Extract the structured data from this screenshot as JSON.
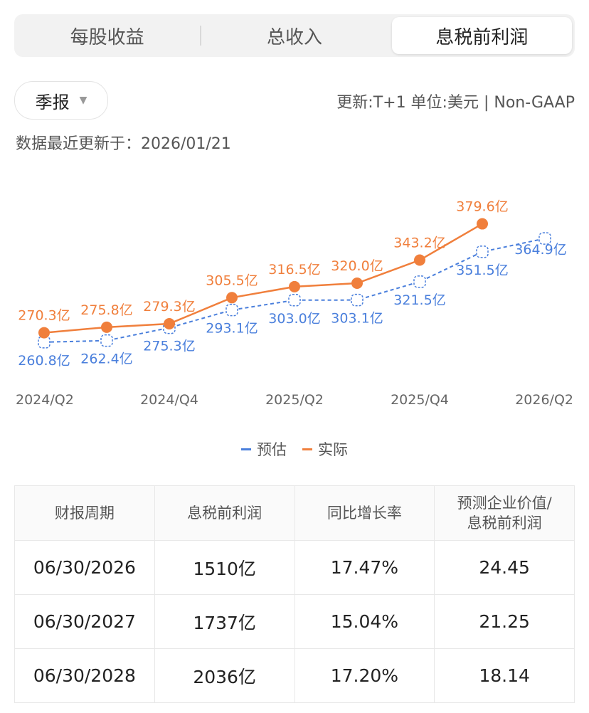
{
  "tabs": [
    "每股收益",
    "总收入",
    "息税前利润"
  ],
  "active_tab": 2,
  "period_selector": {
    "label": "季报"
  },
  "meta_line": "更新:T+1 单位:美元 | Non-GAAP",
  "updated_text": "数据最近更新于：2026/01/21",
  "colors": {
    "actual": "#f07f3c",
    "estimate": "#4a7fdc"
  },
  "chart_data": {
    "type": "line",
    "x": [
      "2024/Q2",
      "2024/Q3",
      "2024/Q4",
      "2025/Q1",
      "2025/Q2",
      "2025/Q3",
      "2025/Q4",
      "2026/Q1",
      "2026/Q2"
    ],
    "x_tick_labels": [
      "2024/Q2",
      "2024/Q4",
      "2025/Q2",
      "2025/Q4",
      "2026/Q2"
    ],
    "ylim": [
      240,
      390
    ],
    "series": [
      {
        "name": "预估",
        "style": "dashed",
        "values": [
          260.8,
          262.4,
          275.3,
          293.1,
          303.0,
          303.1,
          321.5,
          351.5,
          364.9
        ],
        "labels": [
          "260.8亿",
          "262.4亿",
          "275.3亿",
          "293.1亿",
          "303.0亿",
          "303.1亿",
          "321.5亿",
          "351.5亿",
          "364.9亿"
        ]
      },
      {
        "name": "实际",
        "style": "solid",
        "values": [
          270.3,
          275.8,
          279.3,
          305.5,
          316.5,
          320.0,
          343.2,
          379.6,
          null
        ],
        "labels": [
          "270.3亿",
          "275.8亿",
          "279.3亿",
          "305.5亿",
          "316.5亿",
          "320.0亿",
          "343.2亿",
          "379.6亿",
          null
        ]
      }
    ]
  },
  "legend": {
    "estimate": "预估",
    "actual": "实际"
  },
  "table": {
    "headers": [
      "财报周期",
      "息税前利润",
      "同比增长率",
      "预测企业价值/息税前利润"
    ],
    "rows": [
      [
        "06/30/2026",
        "1510亿",
        "17.47%",
        "24.45"
      ],
      [
        "06/30/2027",
        "1737亿",
        "15.04%",
        "21.25"
      ],
      [
        "06/30/2028",
        "2036亿",
        "17.20%",
        "18.14"
      ]
    ]
  }
}
